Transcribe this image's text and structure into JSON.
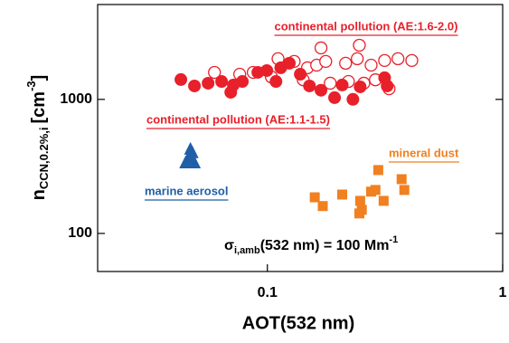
{
  "chart_data": {
    "type": "scatter",
    "xlabel": "AOT(532 nm)",
    "ylabel": {
      "main": "n",
      "sub": "CCN,0.2%,i",
      "unit": "[cm",
      "sup": "-3",
      "close": "]"
    },
    "xscale": "log",
    "yscale": "log",
    "xlim": [
      0.019,
      1
    ],
    "ylim": [
      52,
      5100
    ],
    "xticks": [
      0.1,
      1
    ],
    "yticks": [
      100,
      1000
    ],
    "annotation": {
      "sigma": "σ",
      "sub": "i,amb",
      "main": "(532 nm) = 100 Mm",
      "sup": "-1"
    },
    "series": [
      {
        "name": "continental pollution (AE:1.6-2.0)",
        "color": "#e8202a",
        "marker": "open-circle",
        "x": [
          0.169,
          0.246,
          0.215,
          0.111,
          0.13,
          0.148,
          0.162,
          0.177,
          0.241,
          0.276,
          0.315,
          0.359,
          0.411,
          0.0596,
          0.0763,
          0.0871,
          0.104,
          0.142,
          0.185,
          0.221,
          0.257,
          0.288,
          0.329
        ],
        "values": [
          2420,
          2535,
          1860,
          2010,
          1920,
          1720,
          1800,
          1920,
          2010,
          1800,
          1950,
          2010,
          1950,
          1590,
          1540,
          1590,
          1470,
          1400,
          1320,
          1360,
          1320,
          1400,
          1200
        ]
      },
      {
        "name": "continental pollution (AE:1.1-1.5)",
        "color": "#e8202a",
        "marker": "circle",
        "x": [
          0.0429,
          0.049,
          0.056,
          0.0639,
          0.0717,
          0.0783,
          0.0911,
          0.0995,
          0.114,
          0.124,
          0.138,
          0.151,
          0.169,
          0.193,
          0.208,
          0.231,
          0.248,
          0.315,
          0.323,
          0.0699,
          0.1088
        ],
        "values": [
          1405,
          1260,
          1320,
          1360,
          1280,
          1360,
          1590,
          1640,
          1720,
          1860,
          1540,
          1260,
          1170,
          1030,
          1280,
          1000,
          1240,
          1450,
          1260,
          1130,
          1360
        ]
      },
      {
        "name": "mineral dust",
        "color": "#f08020",
        "marker": "square",
        "x": [
          0.159,
          0.172,
          0.208,
          0.248,
          0.252,
          0.246,
          0.276,
          0.296,
          0.288,
          0.312,
          0.372,
          0.382
        ],
        "values": [
          186,
          160,
          195,
          175,
          150,
          141,
          205,
          297,
          211,
          175,
          254,
          211
        ]
      },
      {
        "name": "marine aerosol",
        "color": "#1f5fa8",
        "marker": "triangle",
        "x": [
          0.0449,
          0.0471,
          0.049,
          0.0471,
          0.046,
          0.048
        ],
        "values": [
          336,
          381,
          336,
          425,
          360,
          400
        ]
      }
    ]
  }
}
